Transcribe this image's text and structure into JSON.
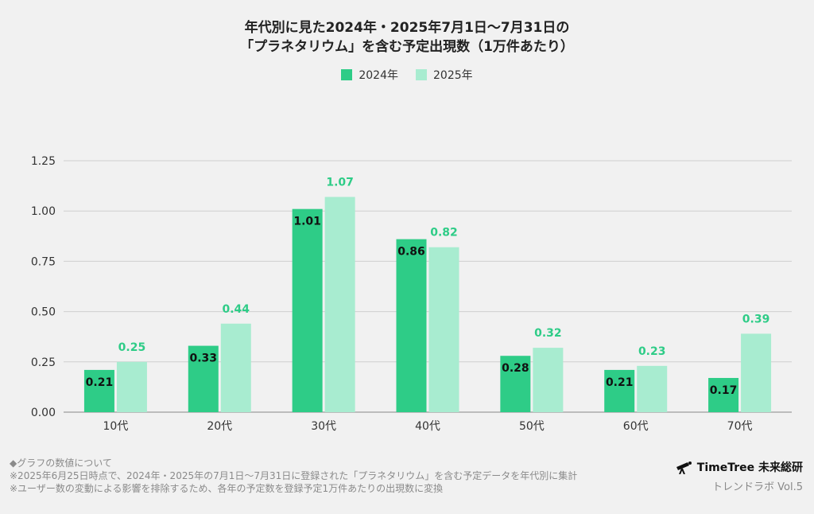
{
  "header": {
    "title_line1": "年代別に見た2024年・2025年7月1日〜7月31日の",
    "title_line2": "「プラネタリウム」を含む予定出現数（1万件あたり）"
  },
  "colors": {
    "s2024": "#2ecc87",
    "s2025": "#a8ecd0",
    "label2025": "#2ecc87",
    "grid": "#cfcfcf"
  },
  "chart_data": {
    "type": "bar",
    "title": "年代別に見た2024年・2025年7月1日〜7月31日の「プラネタリウム」を含む予定出現数（1万件あたり）",
    "categories": [
      "10代",
      "20代",
      "30代",
      "40代",
      "50代",
      "60代",
      "70代"
    ],
    "series": [
      {
        "name": "2024年",
        "values": [
          0.21,
          0.33,
          1.01,
          0.86,
          0.28,
          0.21,
          0.17
        ]
      },
      {
        "name": "2025年",
        "values": [
          0.25,
          0.44,
          1.07,
          0.82,
          0.32,
          0.23,
          0.39
        ]
      }
    ],
    "yticks": [
      "0.00",
      "0.25",
      "0.50",
      "0.75",
      "1.00",
      "1.25"
    ],
    "ylim": [
      0,
      1.25
    ],
    "grid": true,
    "legend": "top-center"
  },
  "footer": {
    "note1": "◆グラフの数値について",
    "note2": "※2025年6月25日時点で、2024年・2025年の7月1日〜7月31日に登録された「プラネタリウム」を含む予定データを年代別に集計",
    "note3": "※ユーザー数の変動による影響を排除するため、各年の予定数を登録予定1万件あたりの出現数に変換"
  },
  "brand": {
    "name": "TimeTree 未来総研",
    "sub": "トレンドラボ Vol.5",
    "logo_icon": "telescope-icon"
  }
}
